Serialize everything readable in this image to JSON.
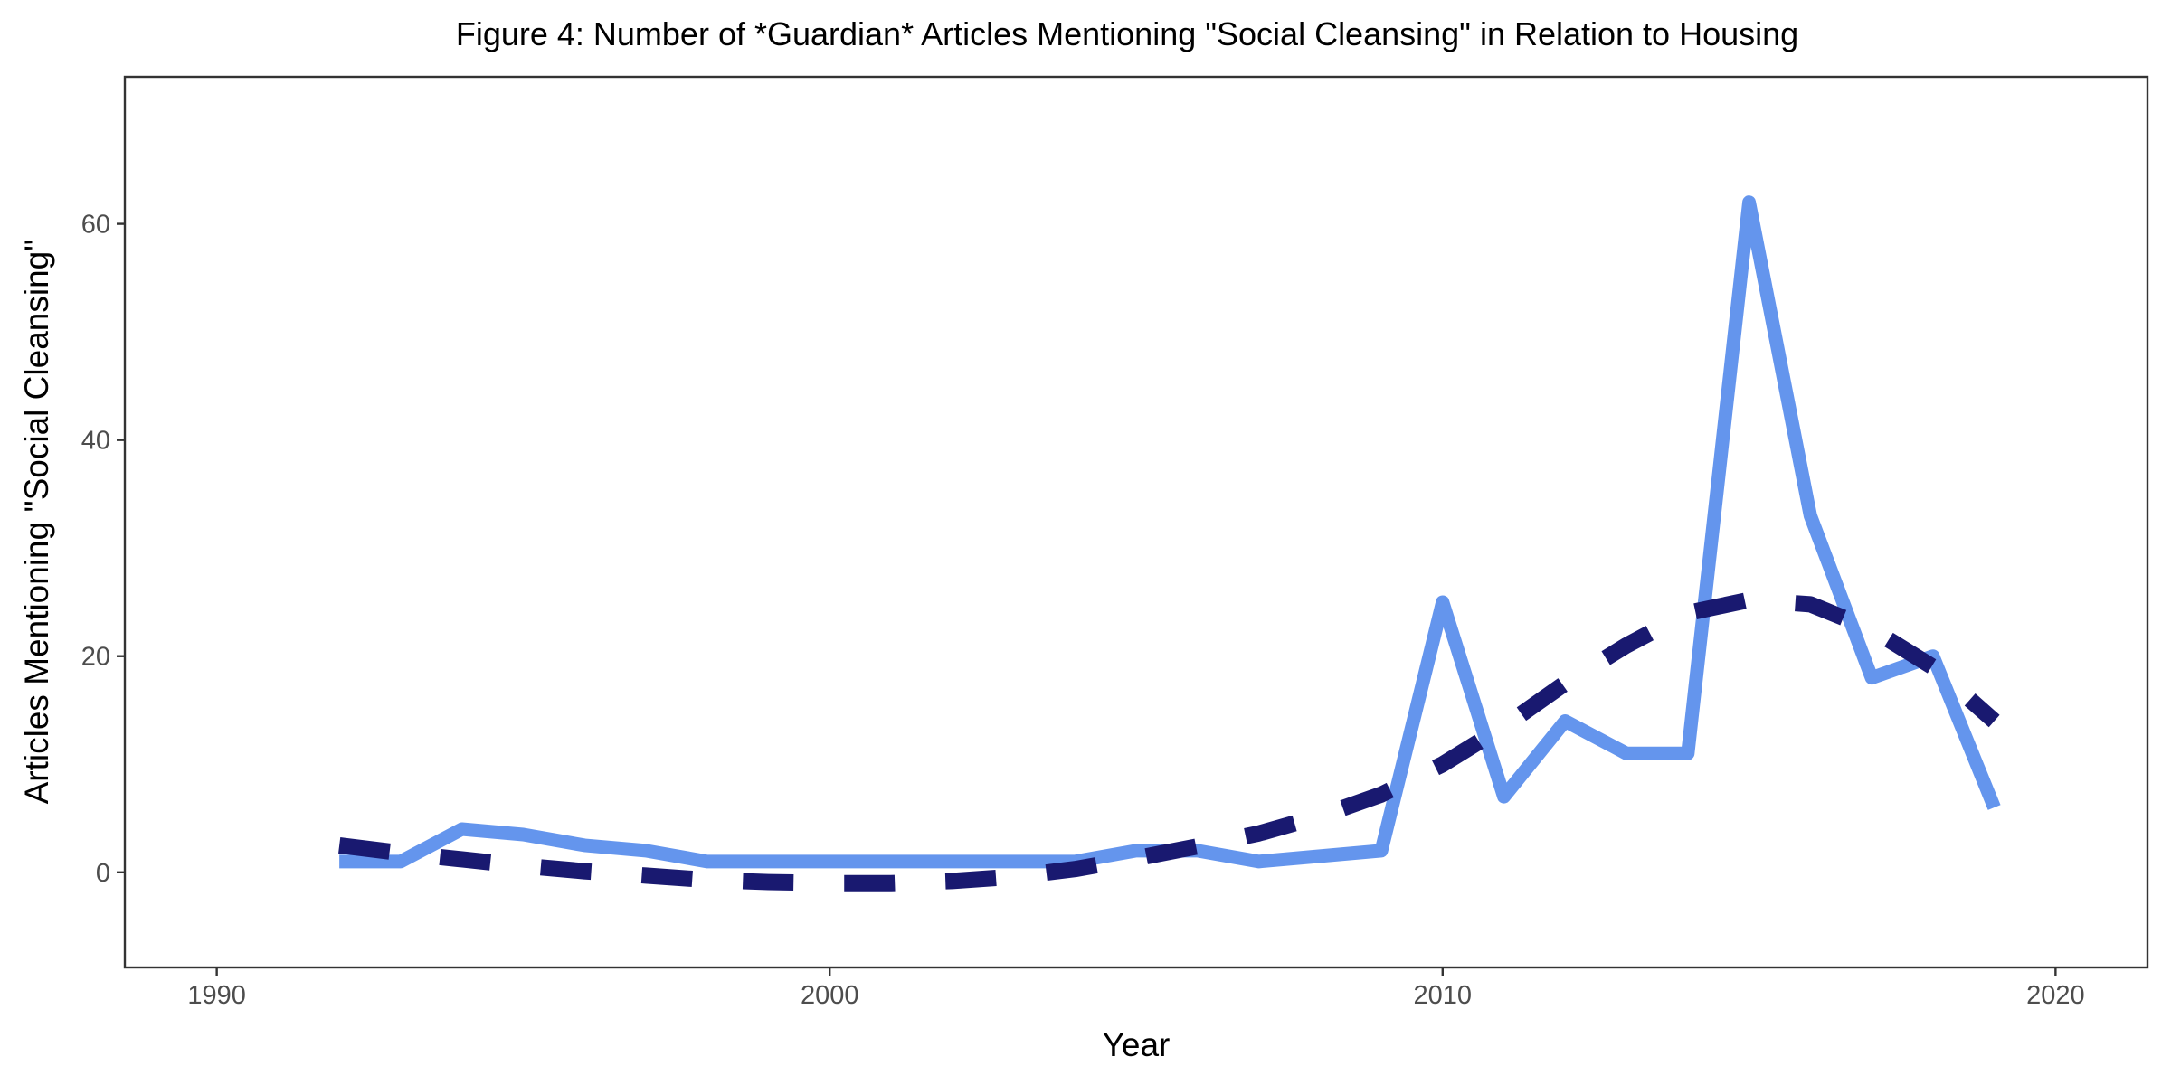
{
  "chart_data": {
    "type": "line",
    "title": "Figure 4: Number of *Guardian* Articles Mentioning \"Social Cleansing\" in Relation to Housing",
    "xlabel": "Year",
    "ylabel": "Articles Mentioning \"Social Cleansing\"",
    "xlim": [
      1988.5,
      2021.5
    ],
    "ylim": [
      -8.8,
      73.6
    ],
    "x_ticks": [
      1990,
      2000,
      2010,
      2020
    ],
    "y_ticks": [
      0,
      20,
      40,
      60
    ],
    "grid": false,
    "legend": "none",
    "series": [
      {
        "style": "solid",
        "color": "#6495ED",
        "x": [
          1992,
          1993,
          1994,
          1995,
          1996,
          1997,
          1998,
          1999,
          2000,
          2001,
          2002,
          2003,
          2004,
          2005,
          2006,
          2007,
          2008,
          2009,
          2010,
          2011,
          2012,
          2013,
          2014,
          2015,
          2016,
          2017,
          2018,
          2019
        ],
        "y": [
          1,
          1,
          4,
          3.5,
          2.5,
          2,
          1,
          1,
          1,
          1,
          1,
          1,
          1,
          2,
          2,
          1,
          1.5,
          2,
          25,
          7,
          14,
          11,
          11,
          62,
          33,
          18,
          20,
          6
        ]
      },
      {
        "style": "dashed",
        "color": "#191970",
        "x": [
          1992,
          1993,
          1994,
          1995,
          1996,
          1997,
          1998,
          1999,
          2000,
          2001,
          2002,
          2003,
          2004,
          2005,
          2006,
          2007,
          2008,
          2009,
          2010,
          2011,
          2012,
          2013,
          2014,
          2015,
          2016,
          2017,
          2018,
          2019
        ],
        "y": [
          2.5,
          1.8,
          1.2,
          0.6,
          0.1,
          -0.3,
          -0.7,
          -0.9,
          -1.0,
          -1.0,
          -0.8,
          -0.4,
          0.3,
          1.3,
          2.4,
          3.6,
          5.2,
          7.2,
          10.0,
          13.5,
          17.5,
          21.0,
          24.0,
          25.2,
          24.8,
          22.5,
          19.0,
          14.0
        ]
      }
    ]
  }
}
